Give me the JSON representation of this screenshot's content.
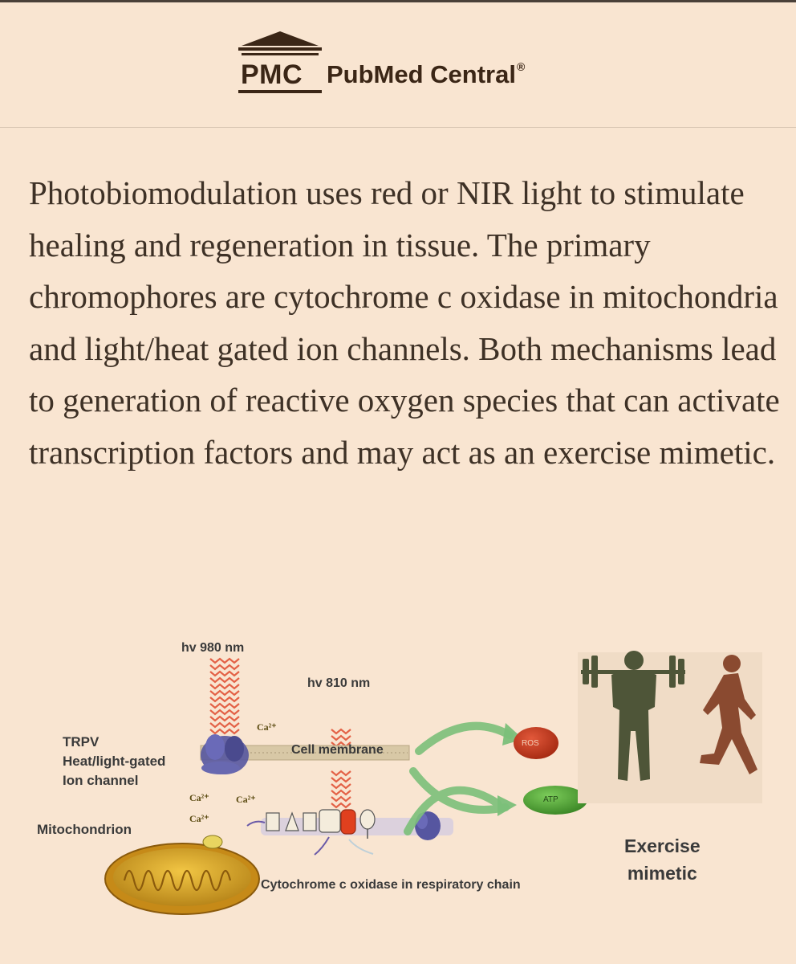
{
  "header": {
    "logo_abbrev": "PMC",
    "logo_name": "PubMed Central",
    "logo_reg": "®"
  },
  "abstract": {
    "text": "Photobiomodulation uses red or NIR light to stimulate healing and regeneration in tissue. The primary chromophores are cytochrome c oxidase in mitochondria and light/heat gated ion channels. Both mechanisms lead to generation of reactive oxygen species that can activate transcription factors and may act as an exercise mimetic."
  },
  "figure": {
    "hv_980": "hv 980 nm",
    "hv_810": "hv 810 nm",
    "trpv_line1": "TRPV",
    "trpv_line2": "Heat/light-gated",
    "trpv_line3": "Ion channel",
    "mitochondrion": "Mitochondrion",
    "cell_membrane": "Cell membrane",
    "cytochrome": "Cytochrome c oxidase in respiratory chain",
    "ros": "ROS",
    "atp": "ATP",
    "calcium": "Ca²⁺",
    "exercise_line1": "Exercise",
    "exercise_line2": "mimetic",
    "colors": {
      "ros_fill": "#c0391e",
      "atp_fill": "#5aa63a",
      "arrow_green": "#7cc07a",
      "light_wave": "#e04a2e",
      "mito_fill": "#d4a21f",
      "channel_blue": "#5a5aa0",
      "membrane": "#c8b795"
    },
    "icons": [
      "weightlifter-icon",
      "runner-icon"
    ]
  }
}
